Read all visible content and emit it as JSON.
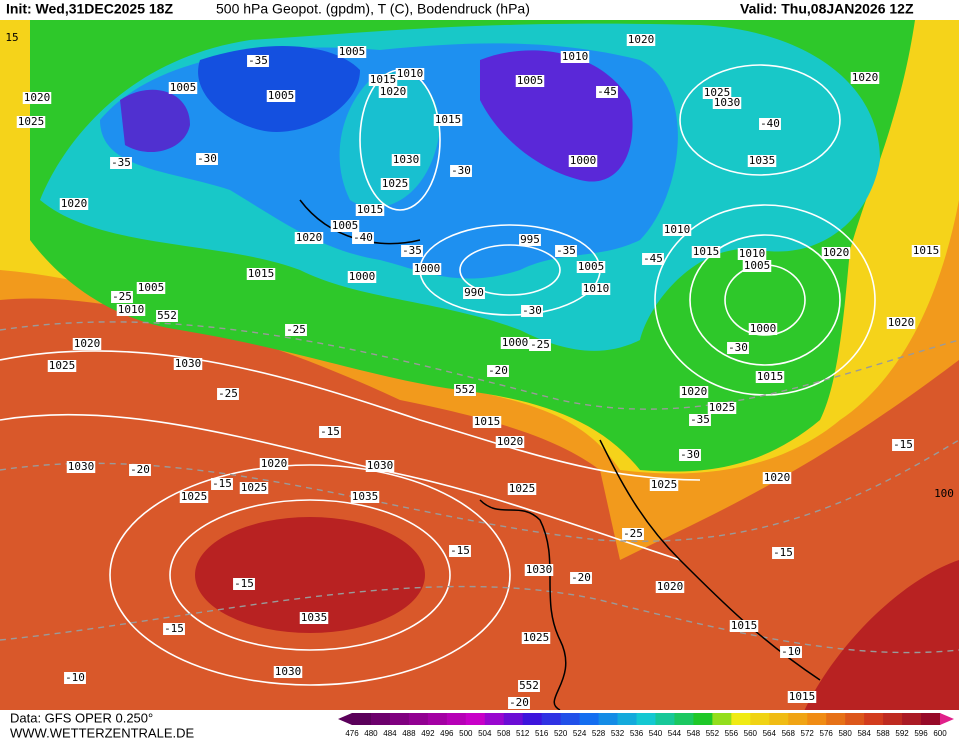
{
  "header": {
    "init": "Init: Wed,31DEC2025 18Z",
    "title": "500 hPa Geopot. (gpdm), T (C), Bodendruck (hPa)",
    "valid": "Valid: Thu,08JAN2026 12Z"
  },
  "edge_labels": [
    15,
    100
  ],
  "pressure_labels": [
    1005,
    1010,
    1015,
    1020,
    1005,
    1005,
    1020,
    1025,
    1015,
    1030,
    1025,
    1015,
    1005,
    1020,
    1020,
    1015,
    1005,
    1010,
    1000,
    1000,
    995,
    990,
    1005,
    1010,
    1000,
    1010,
    1020,
    1005,
    1000,
    1010,
    1015,
    1025,
    1030,
    1020,
    1035,
    1020,
    1015,
    1010,
    1005,
    1000,
    1020,
    1015,
    1020,
    1025,
    1020,
    1025,
    1030,
    1015,
    1020,
    1020,
    1030,
    1025,
    1025,
    1030,
    1035,
    1025,
    1025,
    1020,
    1030,
    1020,
    1035,
    1030,
    1025,
    1015,
    1015
  ],
  "temperature_labels": [
    -35,
    -35,
    -30,
    -45,
    -40,
    -30,
    -40,
    -35,
    -35,
    -45,
    -25,
    552,
    -30,
    -25,
    -25,
    -20,
    -30,
    552,
    -25,
    -15,
    -20,
    -15,
    -35,
    -30,
    -15,
    -15,
    -25,
    -20,
    -15,
    -15,
    -15,
    -10,
    -10,
    552,
    -20
  ],
  "colorbar": {
    "labels": [
      476,
      480,
      484,
      488,
      492,
      496,
      500,
      504,
      508,
      512,
      516,
      520,
      524,
      528,
      532,
      536,
      540,
      544,
      548,
      552,
      556,
      560,
      564,
      568,
      572,
      576,
      580,
      584,
      588,
      592,
      596,
      600
    ]
  },
  "footer": {
    "data": "Data: GFS OPER 0.250°",
    "site": "WWW.WETTERZENTRALE.DE"
  }
}
